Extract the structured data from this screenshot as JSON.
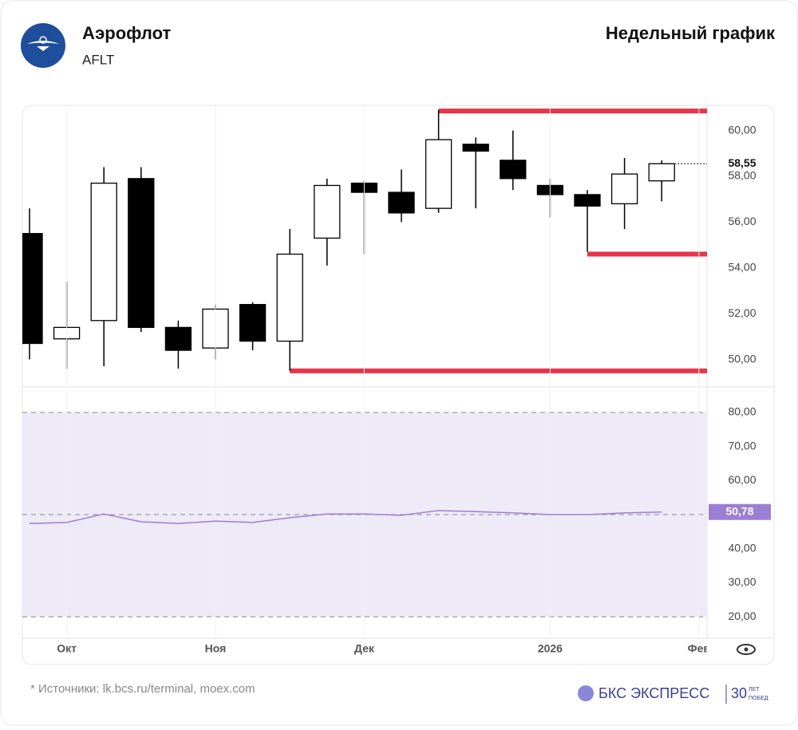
{
  "header": {
    "company": "Аэрофлот",
    "ticker": "AFLT",
    "chart_title": "Недельный график"
  },
  "footer": {
    "sources": "* Источники: lk.bcs.ru/terminal, moex.com",
    "brand": "БКС ЭКСПРЕСС",
    "badge_number": "30",
    "badge_top": "ЛЕТ",
    "badge_bottom": "ПОБЕД"
  },
  "chart_data": [
    {
      "type": "candlestick",
      "open": [
        55.5,
        50.9,
        51.7,
        57.9,
        51.4,
        50.5,
        52.4,
        50.8,
        55.3,
        57.7,
        57.3,
        56.6,
        59.4,
        58.7,
        57.6,
        57.2,
        56.8,
        57.8
      ],
      "high": [
        56.6,
        53.4,
        58.4,
        58.4,
        51.7,
        52.4,
        52.5,
        55.7,
        57.9,
        57.8,
        58.3,
        60.9,
        59.7,
        60.0,
        57.9,
        57.4,
        58.8,
        58.7
      ],
      "low": [
        50.0,
        49.6,
        49.7,
        51.2,
        49.6,
        50.0,
        50.4,
        49.5,
        54.1,
        54.6,
        56.0,
        56.4,
        56.6,
        57.4,
        56.2,
        54.7,
        55.7,
        56.9
      ],
      "close": [
        50.7,
        51.4,
        57.7,
        51.4,
        50.4,
        52.2,
        50.8,
        54.6,
        57.6,
        57.3,
        56.4,
        59.6,
        59.1,
        57.9,
        57.2,
        56.7,
        58.1,
        58.55
      ],
      "last_label": "58,55",
      "up_color": "#ffffff",
      "down_color": "#000000",
      "levels": [
        {
          "value": 60.85,
          "from": 11
        },
        {
          "value": 54.6,
          "from": 15
        },
        {
          "value": 49.5,
          "from": 7
        }
      ],
      "level_color": "#e8334a",
      "ylim": [
        48.8,
        61.1
      ],
      "yticks": [
        {
          "value": 50,
          "label": "50,00"
        },
        {
          "value": 52,
          "label": "52,00"
        },
        {
          "value": 54,
          "label": "54,00"
        },
        {
          "value": 56,
          "label": "56,00"
        },
        {
          "value": 58,
          "label": "58,00"
        },
        {
          "value": 60,
          "label": "60,00"
        }
      ]
    },
    {
      "type": "line",
      "values": [
        47.4,
        47.7,
        50.2,
        47.9,
        47.4,
        48.1,
        47.7,
        49.1,
        50.2,
        50.2,
        49.8,
        51.2,
        50.9,
        50.5,
        50.0,
        50.0,
        50.5,
        50.78
      ],
      "value_labels": [
        null,
        null,
        null,
        null,
        null,
        null,
        null,
        null,
        null,
        null,
        null,
        null,
        null,
        null,
        null,
        null,
        null,
        "50,78"
      ],
      "color": "#9b7fd4",
      "band": [
        20,
        80
      ],
      "band_color": "#efeaf8",
      "levels": [
        80,
        50,
        20
      ],
      "ylim": [
        13.7,
        87.5
      ],
      "yticks": [
        {
          "value": 20,
          "label": "20,00"
        },
        {
          "value": 30,
          "label": "30,00"
        },
        {
          "value": 40,
          "label": "40,00"
        },
        {
          "value": 60,
          "label": "60,00"
        },
        {
          "value": 70,
          "label": "70,00"
        },
        {
          "value": 80,
          "label": "80,00"
        }
      ],
      "xticks": [
        {
          "value": 1,
          "label": "Окт"
        },
        {
          "value": 5,
          "label": "Ноя"
        },
        {
          "value": 9,
          "label": "Дек"
        },
        {
          "value": 14,
          "label": "2026"
        },
        {
          "value": 18,
          "label": "Фев"
        }
      ]
    }
  ]
}
